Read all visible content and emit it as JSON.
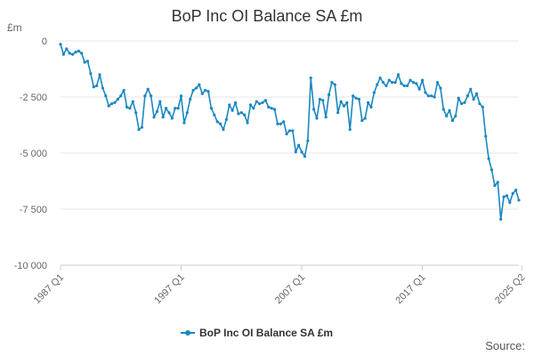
{
  "chart_data": {
    "type": "line",
    "title": "BoP Inc OI Balance SA £m",
    "ylabel": "£m",
    "xlabel": "",
    "ylim": [
      -10000,
      0
    ],
    "yticks": [
      {
        "value": 0,
        "label": "0"
      },
      {
        "value": -2500,
        "label": "-2 500"
      },
      {
        "value": -5000,
        "label": "-5 000"
      },
      {
        "value": -7500,
        "label": "-7 500"
      },
      {
        "value": -10000,
        "label": "-10 000"
      }
    ],
    "xticks": [
      {
        "index": 0,
        "label": "1987 Q1"
      },
      {
        "index": 40,
        "label": "1997 Q1"
      },
      {
        "index": 80,
        "label": "2007 Q1"
      },
      {
        "index": 120,
        "label": "2017 Q1"
      },
      {
        "index": 153,
        "label": "2025 Q2"
      }
    ],
    "grid": true,
    "legend": "bottom",
    "color": "#1b87c1",
    "series": [
      {
        "name": "BoP Inc OI Balance SA £m",
        "values": [
          -150,
          -600,
          -350,
          -550,
          -600,
          -500,
          -450,
          -550,
          -950,
          -900,
          -1450,
          -2050,
          -2000,
          -1500,
          -2100,
          -2450,
          -2900,
          -2800,
          -2750,
          -2600,
          -2450,
          -2200,
          -2950,
          -3000,
          -2700,
          -3200,
          -3950,
          -3850,
          -2450,
          -2150,
          -2450,
          -3400,
          -3150,
          -2700,
          -3400,
          -3000,
          -3200,
          -3450,
          -3000,
          -3000,
          -2450,
          -3650,
          -3200,
          -2600,
          -2200,
          -2100,
          -1950,
          -2350,
          -2200,
          -2250,
          -3000,
          -3300,
          -3600,
          -3700,
          -3950,
          -3500,
          -2850,
          -3100,
          -2750,
          -3250,
          -3200,
          -3300,
          -3650,
          -2850,
          -3000,
          -2700,
          -2800,
          -2750,
          -2650,
          -2950,
          -3000,
          -3050,
          -3700,
          -3700,
          -3600,
          -4150,
          -4000,
          -4000,
          -4950,
          -4650,
          -4950,
          -5150,
          -4450,
          -1650,
          -3050,
          -3450,
          -2600,
          -2650,
          -3400,
          -2400,
          -1850,
          -1950,
          -3200,
          -2700,
          -2900,
          -2750,
          -3950,
          -2450,
          -2550,
          -2600,
          -3550,
          -3450,
          -2750,
          -2950,
          -2300,
          -1950,
          -1650,
          -1850,
          -2000,
          -1750,
          -1850,
          -1850,
          -1500,
          -1900,
          -2000,
          -2000,
          -1750,
          -1850,
          -1900,
          -2150,
          -1750,
          -2300,
          -2450,
          -2450,
          -2500,
          -1850,
          -2100,
          -3050,
          -3350,
          -3100,
          -3550,
          -3350,
          -2550,
          -2800,
          -2750,
          -2450,
          -2150,
          -2600,
          -2350,
          -2800,
          -2950,
          -4250,
          -5250,
          -5750,
          -6450,
          -6300,
          -7950,
          -6950,
          -6900,
          -7200,
          -6800,
          -6650,
          -7100
        ]
      }
    ]
  },
  "source_label": "Source:"
}
